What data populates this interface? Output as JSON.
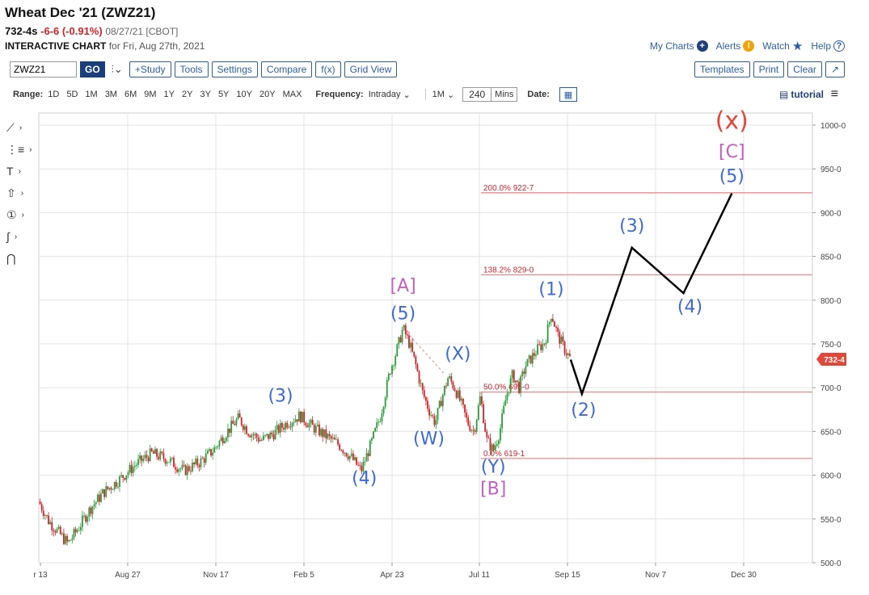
{
  "header": {
    "title": "Wheat Dec '21 (ZWZ21)",
    "last": "732-4s",
    "change": "-6-6 (-0.91%)",
    "meta": "08/27/21 [CBOT]",
    "chart_label": "INTERACTIVE CHART",
    "chart_date": "for Fri, Aug 27th, 2021"
  },
  "toplinks": {
    "my_charts": "My Charts",
    "alerts": "Alerts",
    "watch": "Watch",
    "help": "Help"
  },
  "toolbar": {
    "symbol_value": "ZWZ21",
    "go": "GO",
    "buttons": [
      "+Study",
      "Tools",
      "Settings",
      "Compare",
      "f(x)",
      "Grid View"
    ],
    "right_buttons": [
      "Templates",
      "Print",
      "Clear"
    ]
  },
  "rangebar": {
    "range_label": "Range:",
    "ranges": [
      "1D",
      "5D",
      "1M",
      "3M",
      "6M",
      "9M",
      "1Y",
      "2Y",
      "3Y",
      "5Y",
      "10Y",
      "20Y",
      "MAX"
    ],
    "frequency_label": "Frequency:",
    "frequency_value": "Intraday",
    "interval_value": "1M",
    "mins_value": "240",
    "mins_label": "Mins",
    "date_label": "Date:",
    "tutorial": "tutorial"
  },
  "colors": {
    "up": "#2a9d3a",
    "down": "#d2232a",
    "wave_blue": "#3d6ad6",
    "wave_purple": "#c65fc5",
    "wave_red": "#e0483a",
    "fib_line": "#f08a8a",
    "projection": "#000000",
    "price_tag": "#e0483a"
  },
  "chart_data": {
    "type": "candlestick",
    "x_ticks": [
      "r 13",
      "Aug 27",
      "Nov 17",
      "Feb 5",
      "Apr 23",
      "Jul 11",
      "Sep 15",
      "Nov 7",
      "Dec 30"
    ],
    "y_ticks": [
      "1000-0",
      "950-0",
      "900-0",
      "850-0",
      "800-0",
      "750-0",
      "700-0",
      "650-0",
      "600-0",
      "550-0",
      "500-0"
    ],
    "ylim": [
      500,
      1000
    ],
    "grid": true,
    "last_price_tag": "732-4",
    "price_path": [
      [
        0,
        570
      ],
      [
        6,
        548
      ],
      [
        12,
        535
      ],
      [
        18,
        522
      ],
      [
        24,
        538
      ],
      [
        32,
        562
      ],
      [
        40,
        580
      ],
      [
        50,
        595
      ],
      [
        60,
        612
      ],
      [
        70,
        625
      ],
      [
        80,
        618
      ],
      [
        90,
        605
      ],
      [
        100,
        615
      ],
      [
        108,
        628
      ],
      [
        116,
        648
      ],
      [
        124,
        665
      ],
      [
        130,
        650
      ],
      [
        138,
        640
      ],
      [
        146,
        648
      ],
      [
        154,
        660
      ],
      [
        162,
        668
      ],
      [
        170,
        655
      ],
      [
        178,
        645
      ],
      [
        186,
        635
      ],
      [
        194,
        620
      ],
      [
        200,
        605
      ],
      [
        206,
        635
      ],
      [
        212,
        668
      ],
      [
        218,
        720
      ],
      [
        222,
        742
      ],
      [
        226,
        768
      ],
      [
        230,
        750
      ],
      [
        234,
        725
      ],
      [
        238,
        695
      ],
      [
        242,
        675
      ],
      [
        246,
        660
      ],
      [
        250,
        688
      ],
      [
        254,
        712
      ],
      [
        258,
        700
      ],
      [
        262,
        682
      ],
      [
        266,
        660
      ],
      [
        270,
        650
      ],
      [
        274,
        690
      ],
      [
        278,
        640
      ],
      [
        282,
        628
      ],
      [
        286,
        650
      ],
      [
        290,
        690
      ],
      [
        294,
        715
      ],
      [
        298,
        700
      ],
      [
        302,
        725
      ],
      [
        306,
        735
      ],
      [
        310,
        745
      ],
      [
        314,
        752
      ],
      [
        318,
        785
      ],
      [
        322,
        760
      ],
      [
        326,
        745
      ],
      [
        330,
        732
      ]
    ],
    "projection_path": [
      [
        330,
        732
      ],
      [
        337,
        693
      ],
      [
        368,
        860
      ],
      [
        400,
        808
      ],
      [
        430,
        922
      ]
    ],
    "fib_levels": [
      {
        "label": "200.0% 922-7",
        "price": 922.7
      },
      {
        "label": "138.2% 829-0",
        "price": 829
      },
      {
        "label": "50.0% 695-0",
        "price": 695
      },
      {
        "label": "0.0% 619-1",
        "price": 619.1
      }
    ],
    "annotations": [
      {
        "text": "(3)",
        "t": 150,
        "price": 684,
        "color": "wave_blue"
      },
      {
        "text": "(4)",
        "t": 202,
        "price": 590,
        "color": "wave_blue"
      },
      {
        "text": "[A]",
        "t": 226,
        "price": 810,
        "color": "wave_purple"
      },
      {
        "text": "(5)",
        "t": 226,
        "price": 778,
        "color": "wave_blue"
      },
      {
        "text": "(X)",
        "t": 260,
        "price": 732,
        "color": "wave_blue"
      },
      {
        "text": "(W)",
        "t": 242,
        "price": 635,
        "color": "wave_blue"
      },
      {
        "text": "(Y)",
        "t": 282,
        "price": 603,
        "color": "wave_blue"
      },
      {
        "text": "[B]",
        "t": 282,
        "price": 578,
        "color": "wave_purple"
      },
      {
        "text": "(1)",
        "t": 318,
        "price": 806,
        "color": "wave_blue"
      },
      {
        "text": "(2)",
        "t": 338,
        "price": 668,
        "color": "wave_blue"
      },
      {
        "text": "(3)",
        "t": 368,
        "price": 878,
        "color": "wave_blue"
      },
      {
        "text": "(4)",
        "t": 404,
        "price": 786,
        "color": "wave_blue"
      },
      {
        "text": "(5)",
        "t": 430,
        "price": 935,
        "color": "wave_blue"
      },
      {
        "text": "[C]",
        "t": 430,
        "price": 963,
        "color": "wave_purple"
      },
      {
        "text": "(x)",
        "t": 430,
        "price": 996,
        "color": "wave_red"
      }
    ]
  },
  "left_tools": [
    "line-tool-icon",
    "fib-tool-icon",
    "text-tool-icon",
    "arrow-tool-icon",
    "counter-tool-icon",
    "curve-tool-icon",
    "magnet-tool-icon"
  ]
}
